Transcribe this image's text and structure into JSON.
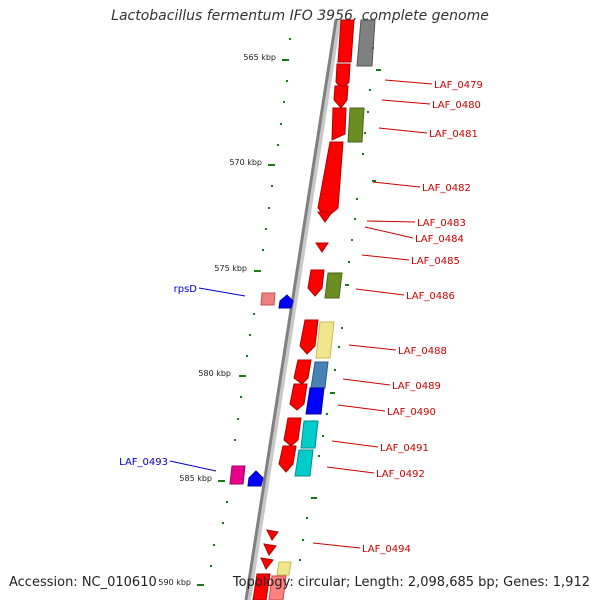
{
  "title": "Lactobacillus fermentum IFO 3956, complete genome",
  "footer": {
    "accession": "Accession: NC_010610",
    "summary": "Topology: circular; Length: 2,098,685 bp; Genes: 1,912"
  },
  "scale_ticks": [
    {
      "label": "565 kbp"
    },
    {
      "label": "570 kbp"
    },
    {
      "label": "575 kbp"
    },
    {
      "label": "580 kbp"
    },
    {
      "label": "585 kbp"
    },
    {
      "label": "590 kbp"
    }
  ],
  "gene_labels_right": [
    {
      "text": "LAF_0479"
    },
    {
      "text": "LAF_0480"
    },
    {
      "text": "LAF_0481"
    },
    {
      "text": "LAF_0482"
    },
    {
      "text": "LAF_0483"
    },
    {
      "text": "LAF_0484"
    },
    {
      "text": "LAF_0485"
    },
    {
      "text": "LAF_0486"
    },
    {
      "text": "LAF_0488"
    },
    {
      "text": "LAF_0489"
    },
    {
      "text": "LAF_0490"
    },
    {
      "text": "LAF_0491"
    },
    {
      "text": "LAF_0492"
    },
    {
      "text": "LAF_0494"
    }
  ],
  "gene_labels_left": [
    {
      "text": "rpsD"
    },
    {
      "text": "LAF_0493"
    }
  ],
  "colors": {
    "label_right": "#cc0000",
    "label_left": "#0000cc",
    "backbone": "#808080",
    "tick": "#1a7a1a",
    "gene_red": "#ff0000",
    "gene_olive": "#6b8e23",
    "gene_khaki": "#f0e68c",
    "gene_steel": "#4682b4",
    "gene_blue": "#0000ff",
    "gene_cyan": "#00cccc",
    "gene_gray": "#808080",
    "gene_pink": "#f08080",
    "gene_magenta": "#e6008a"
  }
}
